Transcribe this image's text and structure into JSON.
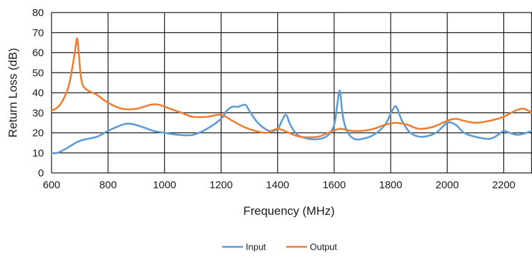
{
  "chart_data": {
    "type": "line",
    "title": "",
    "xlabel": "Frequency (MHz)",
    "ylabel": "Return Loss (dB)",
    "xlim": [
      600,
      2300
    ],
    "ylim": [
      0,
      80
    ],
    "xticks": [
      600,
      800,
      1000,
      1200,
      1400,
      1600,
      1800,
      2000,
      2200
    ],
    "yticks": [
      0,
      10,
      20,
      30,
      40,
      50,
      60,
      70,
      80
    ],
    "grid": true,
    "legend_position": "bottom",
    "series": [
      {
        "name": "Input",
        "color": "#5b9bd5",
        "x": [
          600,
          620,
          650,
          700,
          760,
          800,
          850,
          880,
          920,
          960,
          1000,
          1050,
          1100,
          1150,
          1200,
          1220,
          1240,
          1260,
          1285,
          1300,
          1330,
          1370,
          1400,
          1415,
          1430,
          1445,
          1470,
          1510,
          1550,
          1580,
          1600,
          1610,
          1620,
          1630,
          1645,
          1670,
          1700,
          1740,
          1780,
          1805,
          1820,
          1840,
          1870,
          1910,
          1960,
          2000,
          2030,
          2060,
          2100,
          2150,
          2180,
          2200,
          2220,
          2250,
          2280,
          2300
        ],
        "y": [
          10,
          10,
          12,
          16,
          18,
          21,
          24,
          24.5,
          23,
          21,
          20,
          19,
          19,
          22,
          27,
          31,
          33,
          33,
          34,
          31,
          25,
          21,
          22,
          26,
          29,
          24,
          19,
          17,
          17,
          19,
          24,
          33,
          41,
          29,
          21,
          17,
          17,
          19,
          24,
          31,
          33,
          26,
          20,
          18,
          20,
          25,
          24,
          20,
          18,
          17,
          19,
          21,
          20,
          19,
          20,
          21
        ]
      },
      {
        "name": "Output",
        "color": "#ed7d31",
        "x": [
          600,
          630,
          660,
          680,
          690,
          695,
          705,
          720,
          760,
          800,
          850,
          900,
          950,
          980,
          1020,
          1060,
          1100,
          1150,
          1200,
          1240,
          1280,
          1320,
          1360,
          1400,
          1440,
          1480,
          1540,
          1580,
          1620,
          1660,
          1700,
          1740,
          1780,
          1820,
          1860,
          1900,
          1950,
          2000,
          2030,
          2060,
          2100,
          2150,
          2200,
          2240,
          2270,
          2300
        ],
        "y": [
          31,
          34,
          43,
          58,
          67,
          62,
          47,
          42,
          39,
          35,
          32,
          32,
          34,
          34,
          32,
          30,
          28,
          28,
          29,
          26,
          23,
          21,
          20,
          22,
          20,
          18,
          18,
          20,
          22,
          21,
          21,
          22,
          24,
          25,
          24,
          22,
          23,
          26,
          27,
          26,
          25,
          26,
          28,
          31,
          32,
          30
        ]
      }
    ]
  }
}
